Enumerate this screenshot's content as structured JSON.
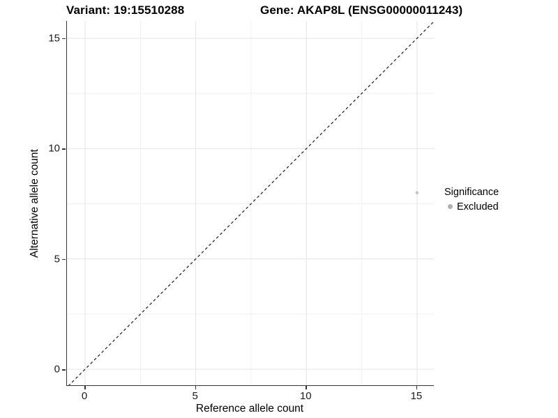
{
  "header": {
    "left_title": "Variant: 19:15510288",
    "right_title": "Gene: AKAP8L (ENSG00000011243)"
  },
  "chart_data": {
    "type": "scatter",
    "xlabel": "Reference allele count",
    "ylabel": "Alternative allele count",
    "xlim": [
      -0.76,
      15.76
    ],
    "ylim": [
      -0.76,
      15.76
    ],
    "x_ticks": [
      0,
      5,
      10,
      15
    ],
    "y_ticks": [
      0,
      5,
      10,
      15
    ],
    "x_minor_ticks": [
      2.5,
      7.5,
      12.5
    ],
    "y_minor_ticks": [
      2.5,
      7.5,
      12.5
    ],
    "grid": true,
    "reference_line": {
      "kind": "identity y=x",
      "style": "dashed",
      "color": "#1a1a1a"
    },
    "series": [
      {
        "name": "Excluded",
        "color": "#c2c2c2",
        "point_radius": 2.2,
        "points": [
          {
            "x": 15,
            "y": 8
          }
        ]
      }
    ],
    "legend": {
      "title": "Significance",
      "position": "right",
      "items": [
        {
          "label": "Excluded",
          "color": "#b0b0b0",
          "marker": "circle"
        }
      ]
    }
  },
  "style_colors": {
    "grid_major": "#e3e3e3",
    "grid_minor": "#f0f0f0",
    "axis_line": "#333333",
    "text": "#000000"
  }
}
